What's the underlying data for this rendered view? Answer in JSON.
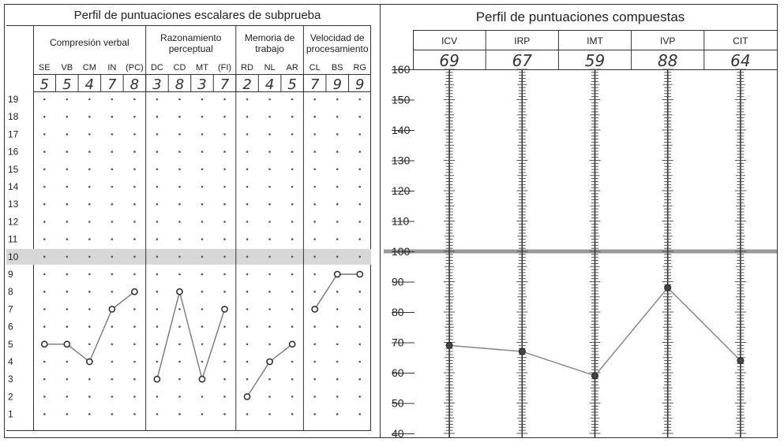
{
  "chart_data": [
    {
      "type": "line",
      "title": "Perfil de puntuaciones escalares de subprueba",
      "xlabel": "",
      "ylabel": "",
      "ylim": [
        1,
        19
      ],
      "reference_line": 10,
      "grid": "dots",
      "groups": [
        {
          "label": "Compresión verbal",
          "subtests": [
            "SE",
            "VB",
            "CM",
            "IN",
            "(PC)"
          ]
        },
        {
          "label_line1": "Razonamiento",
          "label_line2": "perceptual",
          "subtests": [
            "DC",
            "CD",
            "MT",
            "(FI)"
          ]
        },
        {
          "label_line1": "Memoria de",
          "label_line2": "trabajo",
          "subtests": [
            "RD",
            "NL",
            "AR"
          ]
        },
        {
          "label_line1": "Velocidad de",
          "label_line2": "procesamiento",
          "subtests": [
            "CL",
            "BS",
            "RG"
          ]
        }
      ],
      "categories": [
        "SE",
        "VB",
        "CM",
        "IN",
        "(PC)",
        "DC",
        "CD",
        "MT",
        "(FI)",
        "RD",
        "NL",
        "AR",
        "CL",
        "BS",
        "RG"
      ],
      "scores": [
        "5",
        "5",
        "4",
        "7",
        "8",
        "3",
        "8",
        "3",
        "7",
        "2",
        "4",
        "5",
        "7",
        "9",
        "9"
      ],
      "values": [
        5,
        5,
        4,
        7,
        8,
        3,
        8,
        3,
        7,
        2,
        4,
        5,
        7,
        9,
        9
      ],
      "ytick_labels": [
        "19",
        "18",
        "17",
        "16",
        "15",
        "14",
        "13",
        "12",
        "11",
        "10",
        "9",
        "8",
        "7",
        "6",
        "5",
        "4",
        "3",
        "2",
        "1"
      ]
    },
    {
      "type": "line",
      "title": "Perfil de puntuaciones compuestas",
      "xlabel": "",
      "ylabel": "",
      "ylim": [
        40,
        160
      ],
      "reference_line": 100,
      "categories": [
        "ICV",
        "IRP",
        "IMT",
        "IVP",
        "CIT"
      ],
      "scores": [
        "69",
        "67",
        "59",
        "88",
        "64"
      ],
      "values": [
        69,
        67,
        59,
        88,
        64
      ],
      "ytick_labels": [
        "160",
        "150",
        "140",
        "130",
        "120",
        "110",
        "100",
        "90",
        "80",
        "70",
        "60",
        "50",
        "40"
      ]
    }
  ]
}
